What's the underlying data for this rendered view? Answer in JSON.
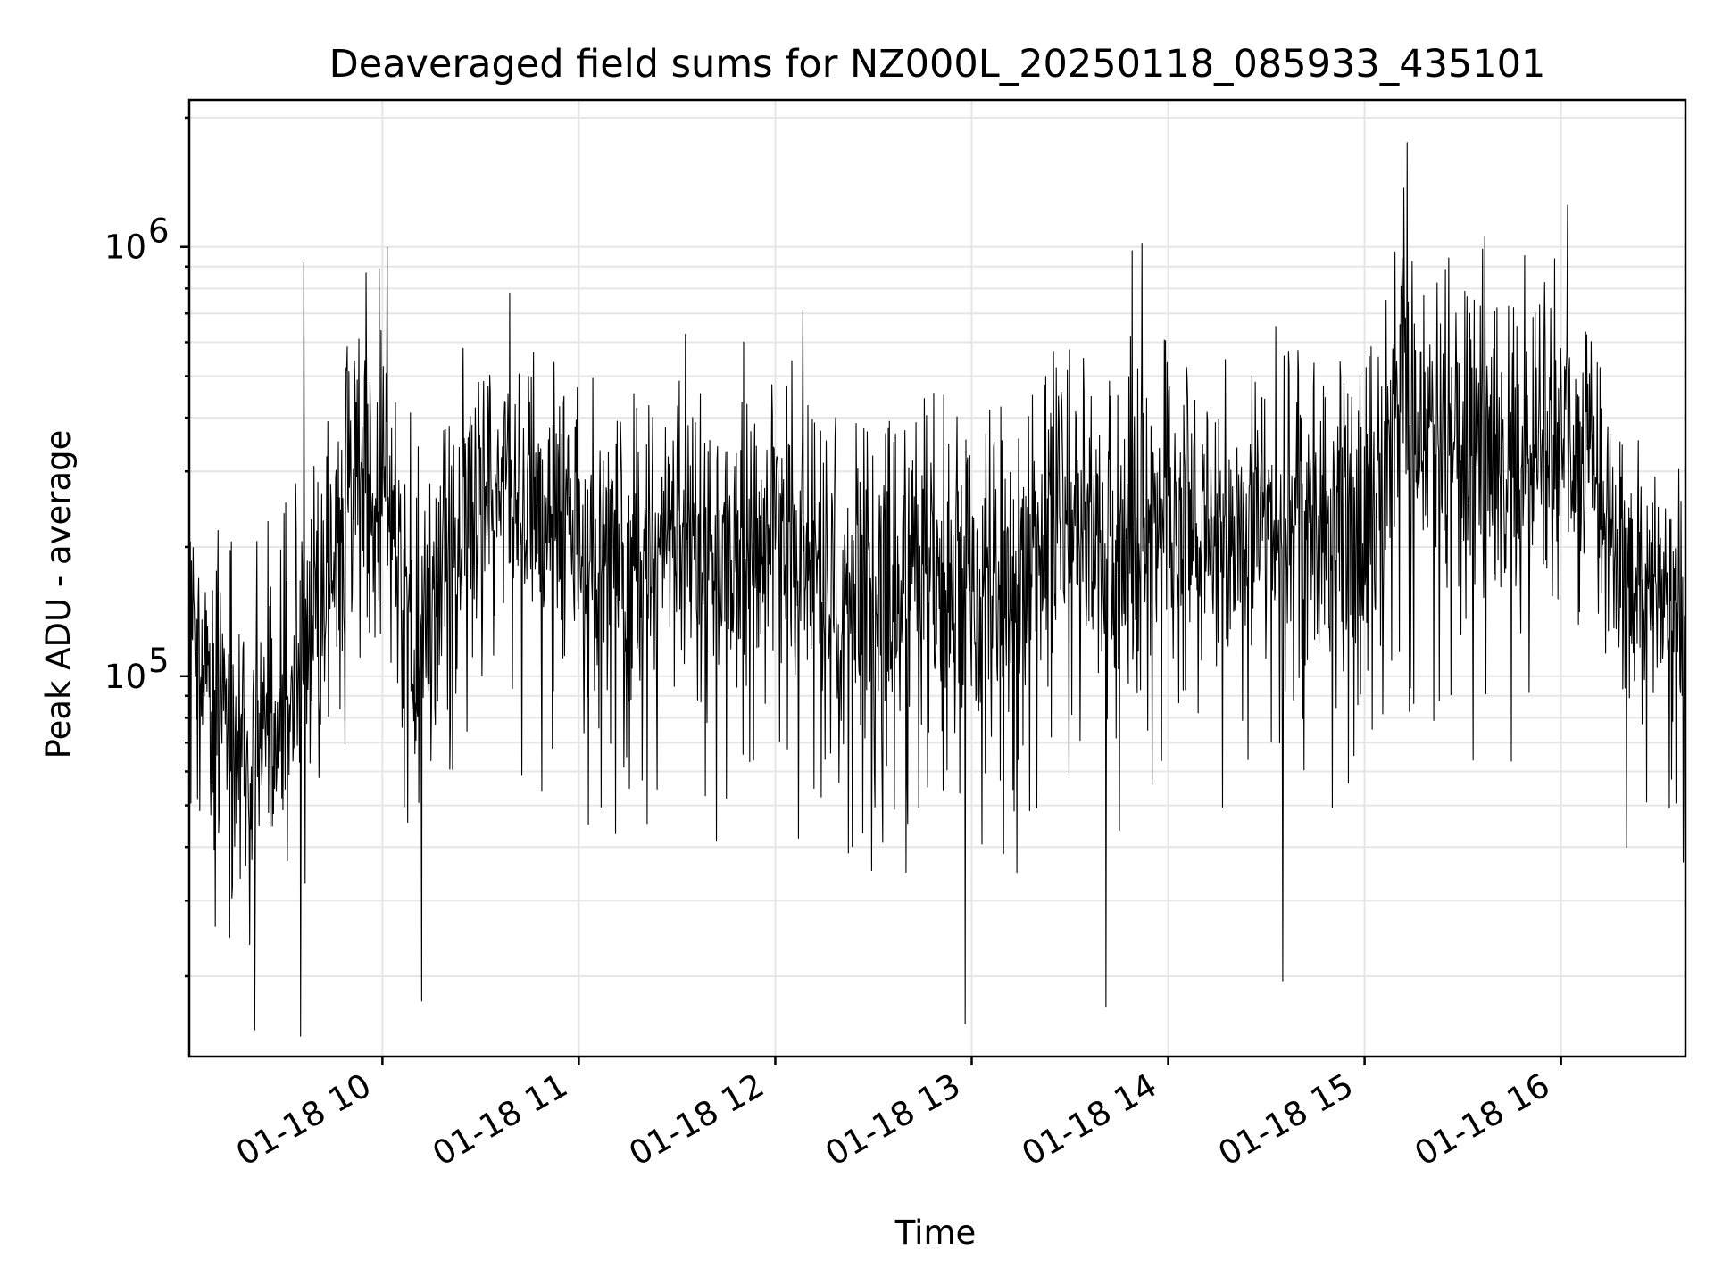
{
  "chart_data": {
    "type": "line",
    "title": "Deaveraged field sums for NZ000L_20250118_085933_435101",
    "xlabel": "Time",
    "ylabel": "Peak ADU - average",
    "yscale": "log",
    "grid": true,
    "line_color": "#000000",
    "xlim": [
      "01-18 09:01",
      "01-18 16:38"
    ],
    "ylim": [
      13000,
      2200000
    ],
    "x_ticks": [
      "01-18 10:00",
      "01-18 11:00",
      "01-18 12:00",
      "01-18 13:00",
      "01-18 14:00",
      "01-18 15:00",
      "01-18 16:00"
    ],
    "x_tick_labels": [
      "01-18 10",
      "01-18 11",
      "01-18 12",
      "01-18 13",
      "01-18 14",
      "01-18 15",
      "01-18 16"
    ],
    "y_ticks": [
      100000,
      1000000
    ],
    "y_tick_base": "10",
    "y_tick_exponents": [
      "5",
      "6"
    ],
    "series": [
      {
        "x": [
          "01-18 09:01",
          "01-18 09:10",
          "01-18 09:20",
          "01-18 09:30",
          "01-18 09:40",
          "01-18 09:50",
          "01-18 10:00",
          "01-18 10:10",
          "01-18 10:20",
          "01-18 10:30",
          "01-18 10:40",
          "01-18 10:50",
          "01-18 11:00",
          "01-18 11:15",
          "01-18 11:30",
          "01-18 11:45",
          "01-18 12:00",
          "01-18 12:15",
          "01-18 12:30",
          "01-18 12:45",
          "01-18 13:00",
          "01-18 13:15",
          "01-18 13:30",
          "01-18 13:45",
          "01-18 14:00",
          "01-18 14:15",
          "01-18 14:30",
          "01-18 14:45",
          "01-18 15:00",
          "01-18 15:10",
          "01-18 15:20",
          "01-18 15:30",
          "01-18 15:45",
          "01-18 16:00",
          "01-18 16:10",
          "01-18 16:20",
          "01-18 16:30",
          "01-18 16:38"
        ],
        "y": [
          150000,
          80000,
          70000,
          90000,
          130000,
          250000,
          300000,
          110000,
          190000,
          270000,
          280000,
          230000,
          200000,
          170000,
          210000,
          190000,
          220000,
          160000,
          140000,
          150000,
          170000,
          150000,
          260000,
          190000,
          250000,
          200000,
          260000,
          220000,
          210000,
          420000,
          380000,
          330000,
          300000,
          380000,
          290000,
          160000,
          180000,
          130000
        ],
        "typical_min": [
          70000,
          40000,
          30000,
          40000,
          70000,
          110000,
          90000,
          50000,
          90000,
          110000,
          100000,
          90000,
          80000,
          70000,
          80000,
          70000,
          80000,
          60000,
          50000,
          60000,
          70000,
          60000,
          90000,
          70000,
          90000,
          80000,
          90000,
          80000,
          80000,
          150000,
          130000,
          110000,
          100000,
          130000,
          110000,
          70000,
          80000,
          60000
        ],
        "typical_max": [
          220000,
          200000,
          180000,
          220000,
          280000,
          500000,
          600000,
          350000,
          450000,
          550000,
          500000,
          450000,
          420000,
          380000,
          420000,
          400000,
          420000,
          380000,
          350000,
          380000,
          400000,
          380000,
          450000,
          400000,
          600000,
          450000,
          500000,
          480000,
          480000,
          900000,
          750000,
          650000,
          600000,
          750000,
          550000,
          300000,
          280000,
          200000
        ],
        "peaks": [
          {
            "x": "01-18 09:36",
            "y": 920000
          },
          {
            "x": "01-18 09:55",
            "y": 870000
          },
          {
            "x": "01-18 09:59",
            "y": 890000
          },
          {
            "x": "01-18 13:49",
            "y": 980000
          },
          {
            "x": "01-18 13:52",
            "y": 1020000
          },
          {
            "x": "01-18 15:13",
            "y": 1750000
          },
          {
            "x": "01-18 16:02",
            "y": 1250000
          }
        ],
        "dips": [
          {
            "x": "01-18 09:21",
            "y": 15000
          },
          {
            "x": "01-18 09:35",
            "y": 14500
          },
          {
            "x": "01-18 10:12",
            "y": 17500
          },
          {
            "x": "01-18 12:58",
            "y": 15500
          },
          {
            "x": "01-18 13:41",
            "y": 17000
          },
          {
            "x": "01-18 14:35",
            "y": 19500
          }
        ]
      }
    ]
  }
}
